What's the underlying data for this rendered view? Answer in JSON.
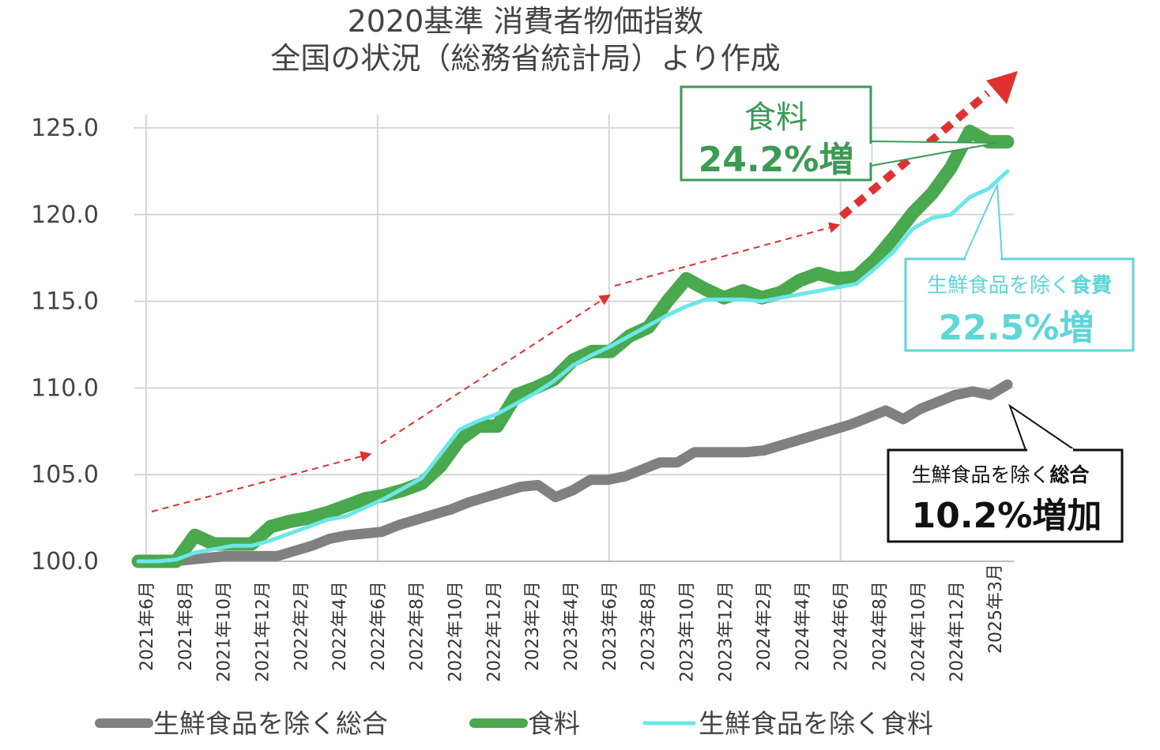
{
  "chart_data": {
    "type": "line",
    "title": [
      "2020基準 消費者物価指数",
      "全国の状況（総務省統計局）より作成"
    ],
    "ylim": [
      100,
      125
    ],
    "yticks": [
      "100.0",
      "105.0",
      "110.0",
      "115.0",
      "120.0",
      "125.0"
    ],
    "grid": true,
    "legend_position": "bottom",
    "x_labels": [
      "2021年6月",
      "2021年8月",
      "2021年10月",
      "2021年12月",
      "2022年2月",
      "2022年4月",
      "2022年6月",
      "2022年8月",
      "2022年10月",
      "2022年12月",
      "2023年2月",
      "2023年4月",
      "2023年6月",
      "2023年8月",
      "2023年10月",
      "2023年12月",
      "2024年2月",
      "2024年4月",
      "2024年6月",
      "2024年8月",
      "2024年10月",
      "2024年12月",
      "2025年3"
    ],
    "x_label_suffix": "月",
    "series": [
      {
        "name": "生鮮食品を除く総合",
        "color": "#808080",
        "values": [
          100.0,
          100.0,
          100.0,
          100.1,
          100.2,
          100.3,
          100.3,
          100.3,
          100.3,
          100.6,
          100.9,
          101.3,
          101.5,
          101.6,
          101.7,
          102.1,
          102.4,
          102.7,
          103.0,
          103.4,
          103.7,
          104.0,
          104.3,
          104.4,
          103.7,
          104.1,
          104.7,
          104.7,
          104.9,
          105.3,
          105.7,
          105.7,
          106.3,
          106.3,
          106.3,
          106.3,
          106.4,
          106.7,
          107.0,
          107.3,
          107.6,
          107.9,
          108.3,
          108.7,
          108.2,
          108.8,
          109.2,
          109.6,
          109.8,
          109.6,
          110.2
        ]
      },
      {
        "name": "食料",
        "color": "#4aa84e",
        "values": [
          100.0,
          100.0,
          100.0,
          101.5,
          101.0,
          101.0,
          101.0,
          102.0,
          102.3,
          102.5,
          102.8,
          103.2,
          103.6,
          103.8,
          104.1,
          104.5,
          105.5,
          107.0,
          107.8,
          107.8,
          109.6,
          110.0,
          110.5,
          111.6,
          112.1,
          112.1,
          113.0,
          113.5,
          115.0,
          116.3,
          115.7,
          115.2,
          115.6,
          115.2,
          115.5,
          116.2,
          116.6,
          116.3,
          116.4,
          117.4,
          118.7,
          120.1,
          121.2,
          122.7,
          124.8,
          124.2,
          124.2
        ]
      },
      {
        "name": "生鮮食品を除く食料",
        "color": "#6ce6e8",
        "values": [
          100.0,
          100.0,
          100.1,
          100.5,
          100.7,
          100.9,
          100.9,
          101.2,
          101.6,
          102.0,
          102.4,
          102.6,
          103.1,
          103.6,
          104.2,
          104.8,
          106.2,
          107.6,
          108.1,
          108.5,
          109.1,
          109.7,
          110.4,
          111.3,
          111.9,
          112.4,
          113.0,
          113.6,
          114.2,
          114.7,
          115.1,
          115.1,
          115.1,
          115.0,
          115.2,
          115.4,
          115.6,
          115.8,
          116.0,
          116.9,
          117.9,
          119.2,
          119.8,
          120.0,
          121.0,
          121.5,
          122.5
        ]
      }
    ],
    "annotations": [
      {
        "label": "食料",
        "value": "24.2%増",
        "border": "#3c9a55",
        "color": "#3c9a55"
      },
      {
        "label_plain": "生鮮食品を除く",
        "label_bold": "食費",
        "value": "22.5%増",
        "border": "#5fd6d8",
        "color": "#5fd6d8"
      },
      {
        "label_plain": "生鮮食品を除く",
        "label_bold": "総合",
        "value": "10.2%増加",
        "border": "#111111",
        "color": "#111111"
      }
    ],
    "trend_arrows_color": "#e03030"
  }
}
